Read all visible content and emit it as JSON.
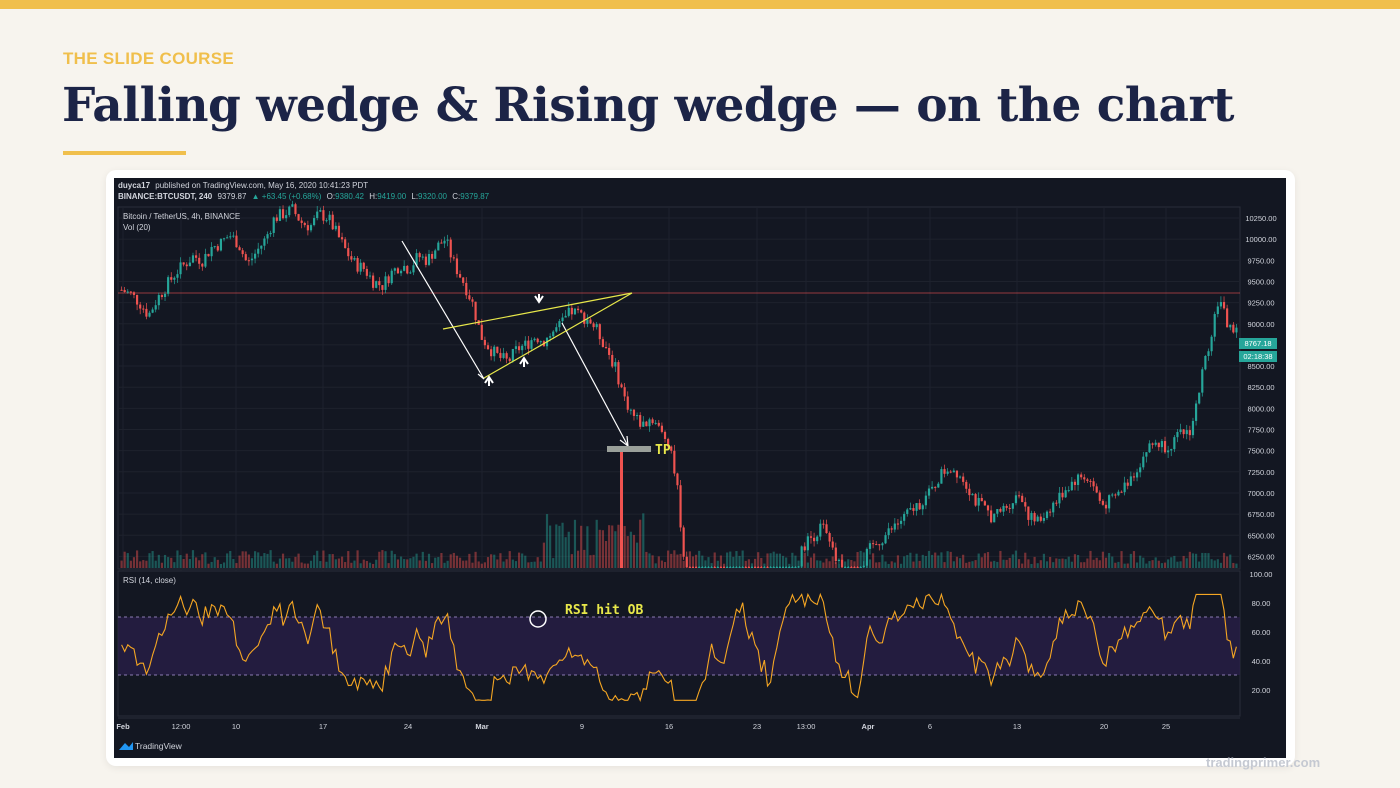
{
  "slide": {
    "eyebrow": "THE SLIDE COURSE",
    "title": "Falling wedge & Rising wedge — on the chart",
    "footer": "tradingprimer.com",
    "accent_color": "#f0bf4c",
    "title_color": "#1c2447"
  },
  "chart_header": {
    "publisher": "duyca17",
    "published_text": "published on TradingView.com, May 16, 2020 10:41:23 PDT",
    "symbol_line": "BINANCE:BTCUSDT, 240",
    "last": "9379.87",
    "change": "▲ +63.45 (+0.68%)",
    "o_label": "O:",
    "o_val": "9380.42",
    "h_label": "H:",
    "h_val": "9419.00",
    "l_label": "L:",
    "l_val": "9320.00",
    "c_label": "C:",
    "c_val": "9379.87",
    "pane_title": "Bitcoin / TetherUS, 4h, BINANCE",
    "vol_label": "Vol (20)",
    "rsi_label": "RSI (14, close)",
    "logo_text": "TradingView"
  },
  "chart_data": {
    "type": "candlestick",
    "price_axis": [
      "10250.00",
      "10000.00",
      "9750.00",
      "9500.00",
      "9250.00",
      "9000.00",
      "8750.00",
      "8500.00",
      "8250.00",
      "8000.00",
      "7750.00",
      "7500.00",
      "7250.00",
      "7000.00",
      "6750.00",
      "6500.00",
      "6250.00"
    ],
    "price_tag": "8767.18",
    "time_tag": "02:18:38",
    "rsi_axis": [
      "100.00",
      "80.00",
      "60.00",
      "40.00",
      "20.00"
    ],
    "x_labels": [
      "Feb",
      "12:00",
      "10",
      "17",
      "24",
      "Mar",
      "9",
      "16",
      "23",
      "13:00",
      "Apr",
      "6",
      "13",
      "20",
      "25"
    ],
    "annotations": {
      "tp": "TP",
      "rsi_note": "RSI hit OB"
    },
    "colors": {
      "up": "#26a69a",
      "down": "#ef5350",
      "rsi": "#f5a623",
      "trend": "#e8e84a",
      "arrow": "#ffffff",
      "background": "#131722"
    },
    "price_path": [
      9400,
      9350,
      9250,
      9100,
      9300,
      9450,
      9600,
      9700,
      9800,
      9750,
      9900,
      9950,
      10050,
      9950,
      9700,
      9850,
      10000,
      10250,
      10300,
      10350,
      10200,
      10150,
      10300,
      10250,
      10050,
      9850,
      9700,
      9650,
      9500,
      9450,
      9600,
      9700,
      9650,
      9800,
      9750,
      9900,
      10000,
      9700,
      9500,
      9250,
      8850,
      8700,
      8600,
      8550,
      8700,
      8750,
      8850,
      8800,
      8900,
      9000,
      9150,
      9100,
      9050,
      8900,
      8700,
      8450,
      8100,
      7900,
      7800,
      7900,
      7700,
      7600,
      6900,
      5500,
      4900,
      5100,
      5300,
      5200,
      5400,
      5700,
      5600,
      5300,
      5200,
      5400,
      5800,
      6100,
      6400,
      6500,
      6600,
      6300,
      6100,
      6000,
      5900,
      6300,
      6400,
      6500,
      6600,
      6700,
      6800,
      6900,
      7000,
      7200,
      7300,
      7250,
      7100,
      6900,
      6800,
      6700,
      6800,
      6900,
      7000,
      6700,
      6650,
      6800,
      6900,
      7050,
      7150,
      7200,
      7100,
      6850,
      6900,
      7000,
      7150,
      7300,
      7500,
      7600,
      7550,
      7600,
      7700,
      7750,
      8300,
      8800,
      9300,
      9000,
      8900
    ]
  }
}
